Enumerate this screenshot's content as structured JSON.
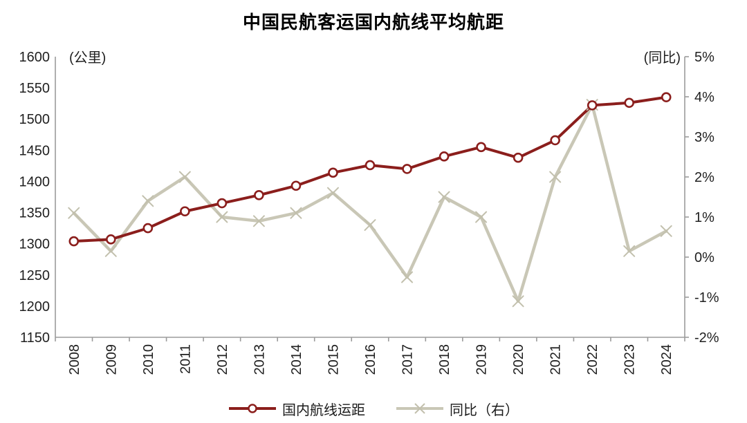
{
  "title": "中国民航客运国内航线平均航距",
  "left_axis_unit": "(公里)",
  "right_axis_unit": "(同比)",
  "legend": {
    "distance_label": "国内航线运距",
    "yoy_label": "同比（右）"
  },
  "colors": {
    "distance_line": "#8B1E1C",
    "marker_fill": "#FFFFFF",
    "yoy_line": "#C9C7B6",
    "yoy_marker": "#C2C0AD",
    "axis": "#9B9B9B",
    "tick_text": "#1F1F1F"
  },
  "chart_data": {
    "type": "line",
    "title": "中国民航客运国内航线平均航距",
    "categories": [
      "2008",
      "2009",
      "2010",
      "2011",
      "2012",
      "2013",
      "2014",
      "2015",
      "2016",
      "2017",
      "2018",
      "2019",
      "2020",
      "2021",
      "2022",
      "2023",
      "2024"
    ],
    "series": [
      {
        "name": "国内航线运距",
        "axis": "left",
        "marker": "circle",
        "unit": "公里",
        "values": [
          1304,
          1307,
          1325,
          1352,
          1365,
          1378,
          1393,
          1414,
          1426,
          1420,
          1440,
          1455,
          1438,
          1466,
          1522,
          1526,
          1535
        ]
      },
      {
        "name": "同比（右）",
        "axis": "right",
        "marker": "x",
        "unit": "%",
        "values": [
          1.1,
          0.15,
          1.4,
          2.0,
          1.0,
          0.9,
          1.1,
          1.6,
          0.8,
          -0.5,
          1.5,
          1.0,
          -1.1,
          2.0,
          3.8,
          0.15,
          0.65
        ]
      }
    ],
    "left_axis": {
      "label": "(公里)",
      "min": 1150,
      "max": 1600,
      "tick_step": 50,
      "ticks": [
        1150,
        1200,
        1250,
        1300,
        1350,
        1400,
        1450,
        1500,
        1550,
        1600
      ]
    },
    "right_axis": {
      "label": "(同比)",
      "min": -2,
      "max": 5,
      "tick_step": 1,
      "ticks": [
        "-2%",
        "-1%",
        "0%",
        "1%",
        "2%",
        "3%",
        "4%",
        "5%"
      ]
    },
    "legend_position": "bottom",
    "grid": false,
    "x_labels_rotated": true
  }
}
